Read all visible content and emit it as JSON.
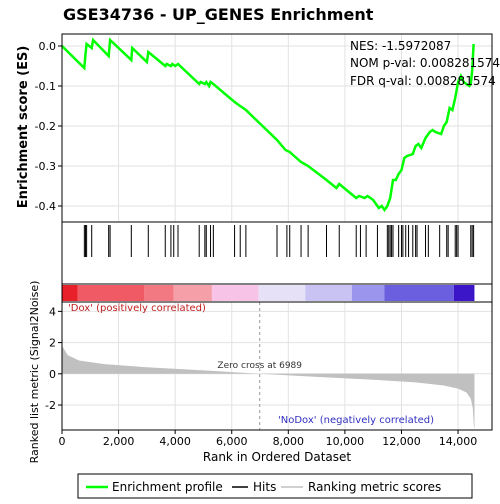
{
  "chart_data": {
    "type": "line",
    "title": "GSE34736 - UP_GENES Enrichment",
    "stats": {
      "nes": "NES: -1.5972087",
      "nom_pval": "NOM p-val: 0.008281574",
      "fdr_qval": "FDR q-val: 0.008281574"
    },
    "es_panel": {
      "ylabel": "Enrichment score (ES)",
      "ylim": [
        -0.44,
        0.03
      ],
      "yticks": [
        0.0,
        -0.1,
        -0.2,
        -0.3,
        -0.4
      ],
      "ytick_labels": [
        "0.0",
        "-0.1",
        "-0.2",
        "-0.3",
        "-0.4"
      ],
      "series": [
        {
          "name": "Enrichment profile",
          "color": "#00ff00",
          "points": [
            [
              0,
              0.0
            ],
            [
              790,
              -0.055
            ],
            [
              830,
              -0.02
            ],
            [
              870,
              0.005
            ],
            [
              1050,
              -0.005
            ],
            [
              1100,
              0.015
            ],
            [
              1650,
              -0.025
            ],
            [
              1700,
              0.015
            ],
            [
              2450,
              -0.035
            ],
            [
              2480,
              -0.005
            ],
            [
              3000,
              -0.04
            ],
            [
              3050,
              -0.015
            ],
            [
              3650,
              -0.05
            ],
            [
              3700,
              -0.045
            ],
            [
              3850,
              -0.05
            ],
            [
              3900,
              -0.045
            ],
            [
              4000,
              -0.05
            ],
            [
              4100,
              -0.045
            ],
            [
              4850,
              -0.095
            ],
            [
              4900,
              -0.09
            ],
            [
              5050,
              -0.095
            ],
            [
              5100,
              -0.09
            ],
            [
              5200,
              -0.1
            ],
            [
              5250,
              -0.09
            ],
            [
              5350,
              -0.095
            ],
            [
              6100,
              -0.14
            ],
            [
              6300,
              -0.15
            ],
            [
              6500,
              -0.16
            ],
            [
              7600,
              -0.235
            ],
            [
              7900,
              -0.26
            ],
            [
              8050,
              -0.265
            ],
            [
              8450,
              -0.29
            ],
            [
              8700,
              -0.3
            ],
            [
              9350,
              -0.335
            ],
            [
              9700,
              -0.355
            ],
            [
              9800,
              -0.345
            ],
            [
              10400,
              -0.38
            ],
            [
              10500,
              -0.375
            ],
            [
              10700,
              -0.38
            ],
            [
              10800,
              -0.375
            ],
            [
              10900,
              -0.38
            ],
            [
              11000,
              -0.385
            ],
            [
              11100,
              -0.395
            ],
            [
              11200,
              -0.405
            ],
            [
              11300,
              -0.4
            ],
            [
              11400,
              -0.41
            ],
            [
              11450,
              -0.405
            ],
            [
              11500,
              -0.4
            ],
            [
              11600,
              -0.38
            ],
            [
              11700,
              -0.335
            ],
            [
              11800,
              -0.335
            ],
            [
              11900,
              -0.32
            ],
            [
              12000,
              -0.31
            ],
            [
              12100,
              -0.28
            ],
            [
              12200,
              -0.275
            ],
            [
              12400,
              -0.27
            ],
            [
              12500,
              -0.25
            ],
            [
              12600,
              -0.245
            ],
            [
              12700,
              -0.255
            ],
            [
              12850,
              -0.23
            ],
            [
              13000,
              -0.215
            ],
            [
              13100,
              -0.21
            ],
            [
              13200,
              -0.215
            ],
            [
              13400,
              -0.22
            ],
            [
              13500,
              -0.2
            ],
            [
              13600,
              -0.19
            ],
            [
              13700,
              -0.155
            ],
            [
              13800,
              -0.16
            ],
            [
              13900,
              -0.13
            ],
            [
              14000,
              -0.09
            ],
            [
              14100,
              -0.075
            ],
            [
              14200,
              -0.09
            ],
            [
              14300,
              -0.095
            ],
            [
              14400,
              -0.1
            ],
            [
              14450,
              -0.095
            ],
            [
              14500,
              -0.06
            ],
            [
              14550,
              0.005
            ]
          ]
        }
      ]
    },
    "hits": [
      790,
      830,
      870,
      1050,
      1650,
      1700,
      2450,
      3050,
      3650,
      3850,
      3950,
      4100,
      4850,
      5050,
      5100,
      5250,
      5350,
      6100,
      6300,
      6500,
      7600,
      7950,
      8050,
      8450,
      8700,
      9350,
      9800,
      10400,
      10550,
      10750,
      11150,
      11500,
      11550,
      11600,
      11650,
      11700,
      11900,
      12000,
      12050,
      12150,
      12250,
      12400,
      12500,
      12550,
      12850,
      12950,
      13350,
      13600,
      13650,
      13900,
      13950,
      14000,
      14450,
      14500,
      14550
    ],
    "metric_panel": {
      "ylabel": "Ranked list metric (Signal2Noise)",
      "ylim": [
        -3.6,
        4.6
      ],
      "yticks": [
        4,
        2,
        0,
        -2
      ],
      "ytick_labels": [
        "4",
        "2",
        "0",
        "-2"
      ],
      "curve": [
        [
          0,
          1.8
        ],
        [
          200,
          1.2
        ],
        [
          600,
          0.85
        ],
        [
          1500,
          0.62
        ],
        [
          3000,
          0.42
        ],
        [
          5000,
          0.22
        ],
        [
          6989,
          0.0
        ],
        [
          9000,
          -0.2
        ],
        [
          11000,
          -0.38
        ],
        [
          12500,
          -0.55
        ],
        [
          13500,
          -0.75
        ],
        [
          14000,
          -0.95
        ],
        [
          14300,
          -1.2
        ],
        [
          14450,
          -1.6
        ],
        [
          14520,
          -2.2
        ],
        [
          14560,
          -3.4
        ],
        [
          14580,
          -3.5
        ]
      ],
      "zero_cross_label": "Zero cross at 6989",
      "zero_cross_x": 6989,
      "positive_label": "'Dox' (positively correlated)",
      "negative_label": "'NoDox' (negatively correlated)"
    },
    "x_axis": {
      "label": "Rank in Ordered Dataset",
      "range": [
        0,
        15200
      ],
      "ticks": [
        0,
        2000,
        4000,
        6000,
        8000,
        10000,
        12000,
        14000
      ],
      "tick_labels": [
        "0",
        "2,000",
        "4,000",
        "6,000",
        "8,000",
        "10,000",
        "12,000",
        "14,000"
      ],
      "last_rank": 14580
    },
    "ranking_bar": {
      "segments": [
        {
          "from": 0,
          "to": 550,
          "color": "#e8202a"
        },
        {
          "from": 550,
          "to": 2900,
          "color": "#f05a64"
        },
        {
          "from": 2900,
          "to": 3950,
          "color": "#f27882"
        },
        {
          "from": 3950,
          "to": 5300,
          "color": "#f5a0a8"
        },
        {
          "from": 5300,
          "to": 6950,
          "color": "#f7c3e6"
        },
        {
          "from": 6950,
          "to": 8600,
          "color": "#e6e1f7"
        },
        {
          "from": 8600,
          "to": 10250,
          "color": "#c9c3f4"
        },
        {
          "from": 10250,
          "to": 11400,
          "color": "#9c95ed"
        },
        {
          "from": 11400,
          "to": 13850,
          "color": "#6b5fe0"
        },
        {
          "from": 13850,
          "to": 14580,
          "color": "#3a16c8"
        }
      ]
    },
    "legend": {
      "items": [
        {
          "label": "Enrichment profile",
          "color": "#00ff00"
        },
        {
          "label": "Hits",
          "color": "#000000"
        },
        {
          "label": "Ranking metric scores",
          "color": "#c0c0c0"
        }
      ]
    }
  }
}
